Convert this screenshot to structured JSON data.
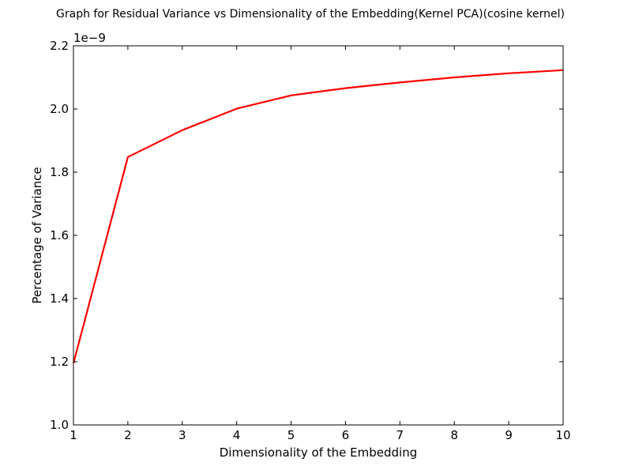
{
  "chart_data": {
    "type": "line",
    "title": "Graph for Residual Variance vs Dimensionality of the Embedding(Kernel PCA)(cosine kernel)",
    "xlabel": "Dimensionality of the Embedding",
    "ylabel": "Percentage of Variance",
    "offset_label": "1e−9",
    "xlim": [
      1,
      10
    ],
    "ylim": [
      1.0,
      2.2
    ],
    "x_ticks": [
      1,
      2,
      3,
      4,
      5,
      6,
      7,
      8,
      9,
      10
    ],
    "x_tick_labels": [
      "1",
      "2",
      "3",
      "4",
      "5",
      "6",
      "7",
      "8",
      "9",
      "10"
    ],
    "y_ticks": [
      1.0,
      1.2,
      1.4,
      1.6,
      1.8,
      2.0,
      2.2
    ],
    "y_tick_labels": [
      "1.0",
      "1.2",
      "1.4",
      "1.6",
      "1.8",
      "2.0",
      "2.2"
    ],
    "grid": false,
    "series": [
      {
        "color": "#ff0000",
        "x": [
          1,
          2,
          3,
          4,
          5,
          6,
          7,
          8,
          9,
          10
        ],
        "y": [
          1.195,
          1.848,
          1.933,
          2.001,
          2.043,
          2.066,
          2.084,
          2.1,
          2.113,
          2.123
        ]
      }
    ]
  }
}
